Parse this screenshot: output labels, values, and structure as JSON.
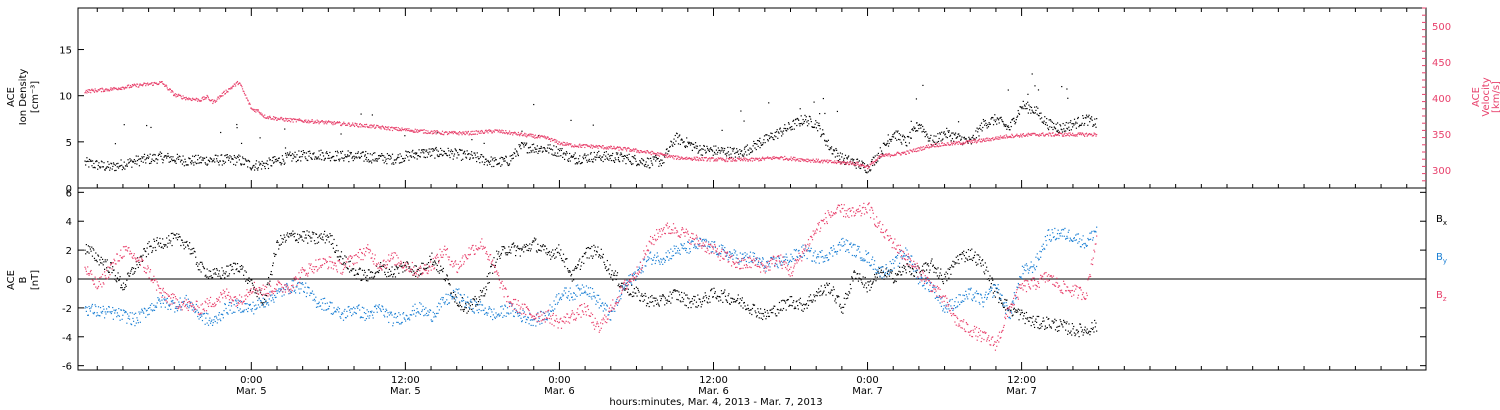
{
  "colors": {
    "black": "#000000",
    "pink": "#e8416c",
    "blue": "#1a7fd4"
  },
  "time_axis": {
    "title": "hours:minutes, Mar.  4, 2013 - Mar. 7, 2013",
    "range_hours": [
      -13.5,
      91.5
    ],
    "ticks": [
      {
        "h": 0,
        "time": "0:00",
        "date": "Mar. 5"
      },
      {
        "h": 12,
        "time": "12:00",
        "date": "Mar. 5"
      },
      {
        "h": 24,
        "time": "0:00",
        "date": "Mar. 6"
      },
      {
        "h": 36,
        "time": "12:00",
        "date": "Mar. 6"
      },
      {
        "h": 48,
        "time": "0:00",
        "date": "Mar. 7"
      },
      {
        "h": 60,
        "time": "12:00",
        "date": "Mar. 7"
      }
    ],
    "minor_step_hours": 2
  },
  "chart_data": [
    {
      "type": "scatter",
      "panel": "top",
      "left_axis": {
        "label_lines": [
          "ACE",
          "Ion Density",
          "[cm⁻³]"
        ],
        "ylim": [
          0,
          19.5
        ],
        "ticks": [
          0,
          5,
          10,
          15
        ]
      },
      "right_axis": {
        "label_lines": [
          "ACE",
          "Velocity",
          "[km/s]"
        ],
        "ylim": [
          275,
          525
        ],
        "ticks": [
          300,
          350,
          400,
          450,
          500
        ]
      },
      "series": [
        {
          "color": "black",
          "axis": "left",
          "x": [
            -13,
            -11,
            -9,
            -7,
            -5,
            -3,
            -1,
            0,
            1,
            3,
            5,
            7,
            9,
            11,
            13,
            15,
            17,
            19,
            20,
            21,
            23,
            24,
            25,
            27,
            29,
            31,
            32,
            33,
            35,
            37,
            38,
            39,
            41,
            43,
            44,
            45,
            46,
            47,
            48,
            49,
            50,
            51,
            52,
            53,
            54,
            55,
            56,
            57,
            58,
            59,
            60,
            61,
            62,
            63,
            64,
            65,
            65.8
          ],
          "y": [
            2.8,
            2.3,
            3.0,
            3.4,
            3.0,
            3.1,
            3.1,
            2.5,
            2.6,
            3.4,
            3.7,
            3.5,
            3.4,
            3.2,
            3.8,
            3.9,
            3.5,
            2.8,
            3.0,
            4.5,
            4.3,
            4.0,
            3.2,
            3.5,
            3.3,
            2.8,
            3.0,
            5.5,
            4.2,
            4.0,
            3.8,
            4.5,
            6.0,
            7.5,
            7.0,
            4.5,
            3.2,
            2.8,
            2.2,
            4.0,
            6.0,
            5.0,
            7.0,
            5.0,
            6.0,
            5.5,
            5.0,
            7.0,
            7.5,
            6.5,
            9.0,
            8.5,
            7.0,
            6.5,
            7.0,
            7.5,
            7.0
          ]
        },
        {
          "color": "pink",
          "axis": "right",
          "x": [
            -13,
            -11,
            -9,
            -8,
            -7,
            -6,
            -5,
            -4,
            -3.5,
            -3,
            -2,
            -1,
            0,
            0.5,
            1,
            2,
            3,
            5,
            7,
            9,
            11,
            13,
            15,
            17,
            19,
            21,
            23,
            24,
            25,
            27,
            29,
            31,
            33,
            35,
            37,
            39,
            41,
            43,
            45,
            47,
            48,
            49,
            51,
            53,
            55,
            57,
            59,
            61,
            63,
            65,
            65.8
          ],
          "y": [
            410,
            413,
            418,
            420,
            422,
            405,
            400,
            398,
            402,
            395,
            410,
            423,
            385,
            383,
            375,
            372,
            370,
            368,
            365,
            362,
            358,
            355,
            352,
            352,
            355,
            350,
            345,
            338,
            335,
            333,
            330,
            325,
            318,
            316,
            315,
            315,
            318,
            315,
            312,
            310,
            305,
            320,
            325,
            335,
            338,
            342,
            348,
            350,
            350,
            350,
            350
          ]
        }
      ]
    },
    {
      "type": "scatter",
      "panel": "bottom",
      "left_axis": {
        "label_lines": [
          "ACE",
          "B",
          "[nT]"
        ],
        "ylim": [
          -6.3,
          6.3
        ],
        "ticks": [
          -6,
          -4,
          -2,
          0,
          2,
          4,
          6
        ]
      },
      "legend": [
        {
          "text": "B",
          "sub": "x",
          "color": "black"
        },
        {
          "text": "B",
          "sub": "y",
          "color": "blue"
        },
        {
          "text": "B",
          "sub": "z",
          "color": "pink"
        }
      ],
      "series": [
        {
          "name": "Bx",
          "color": "black",
          "x": [
            -13,
            -12,
            -11,
            -10,
            -9,
            -8,
            -7,
            -6,
            -5,
            -4,
            -3,
            -2,
            -1,
            0,
            1,
            2,
            3,
            4,
            5,
            6,
            7,
            8,
            9,
            10,
            11,
            12,
            13,
            14,
            15,
            16,
            17,
            18,
            19,
            20,
            21,
            22,
            23,
            24,
            25,
            26,
            27,
            28,
            29,
            30,
            31,
            32,
            33,
            34,
            35,
            36,
            37,
            38,
            39,
            40,
            41,
            42,
            43,
            44,
            45,
            46,
            47,
            48,
            49,
            50,
            51,
            52,
            53,
            54,
            55,
            56,
            57,
            58,
            59,
            60,
            61,
            62,
            63,
            64,
            65,
            65.8
          ],
          "y": [
            2.2,
            1.5,
            0.8,
            -0.5,
            1.0,
            2.2,
            2.6,
            2.8,
            2.5,
            0.8,
            0.3,
            0.5,
            1.0,
            -0.5,
            -1.5,
            2.5,
            3.0,
            3.0,
            2.8,
            3.0,
            1.5,
            0.5,
            0.2,
            0.8,
            0.5,
            1.0,
            0.5,
            1.5,
            0.3,
            -1.5,
            -2.0,
            -1.0,
            1.5,
            2.2,
            2.0,
            2.5,
            1.8,
            2.0,
            0.2,
            1.8,
            2.0,
            0.5,
            -0.5,
            -1.0,
            -1.5,
            -1.5,
            -1.0,
            -1.5,
            -1.5,
            -1.0,
            -1.2,
            -1.5,
            -2.0,
            -2.5,
            -2.0,
            -1.5,
            -1.8,
            -1.0,
            -0.5,
            -2.0,
            0.5,
            -0.5,
            0.5,
            0.2,
            0.8,
            0.5,
            1.0,
            0.0,
            1.5,
            1.8,
            1.0,
            -1.0,
            -2.0,
            -2.5,
            -3.0,
            -3.0,
            -3.2,
            -3.5,
            -3.5,
            -3.2
          ]
        },
        {
          "name": "By",
          "color": "blue",
          "x": [
            -13,
            -12,
            -11,
            -10,
            -9,
            -8,
            -7,
            -6,
            -5,
            -4,
            -3,
            -2,
            -1,
            0,
            1,
            2,
            3,
            4,
            5,
            6,
            7,
            8,
            9,
            10,
            11,
            12,
            13,
            14,
            15,
            16,
            17,
            18,
            19,
            20,
            21,
            22,
            23,
            24,
            25,
            26,
            27,
            28,
            29,
            30,
            31,
            32,
            33,
            34,
            35,
            36,
            37,
            38,
            39,
            40,
            41,
            42,
            43,
            44,
            45,
            46,
            47,
            48,
            49,
            50,
            51,
            52,
            53,
            54,
            55,
            56,
            57,
            58,
            59,
            60,
            61,
            62,
            63,
            64,
            65,
            65.8
          ],
          "y": [
            -2.0,
            -2.2,
            -2.3,
            -2.5,
            -2.8,
            -2.0,
            -1.5,
            -1.8,
            -1.5,
            -2.5,
            -3.0,
            -2.0,
            -1.8,
            -2.0,
            -1.5,
            -1.0,
            -0.5,
            -0.5,
            -1.5,
            -1.8,
            -2.5,
            -2.0,
            -2.5,
            -2.0,
            -2.8,
            -2.5,
            -2.0,
            -2.5,
            -1.5,
            -1.0,
            -1.8,
            -2.0,
            -2.5,
            -2.0,
            -2.5,
            -2.8,
            -2.5,
            -1.0,
            -1.0,
            -0.5,
            -1.5,
            -2.5,
            -0.5,
            0.5,
            1.5,
            1.5,
            2.0,
            2.2,
            2.5,
            2.2,
            1.8,
            1.5,
            1.5,
            1.0,
            1.2,
            1.5,
            2.0,
            1.5,
            1.8,
            2.5,
            2.0,
            1.5,
            0.5,
            1.0,
            2.0,
            0.0,
            -0.5,
            -2.0,
            -1.5,
            -1.0,
            -1.5,
            -0.5,
            -2.5,
            0.5,
            1.0,
            3.0,
            3.2,
            3.0,
            2.5,
            3.5
          ]
        },
        {
          "name": "Bz",
          "color": "pink",
          "x": [
            -13,
            -12,
            -11,
            -10,
            -9,
            -8,
            -7,
            -6,
            -5,
            -4,
            -3,
            -2,
            -1,
            0,
            1,
            2,
            3,
            4,
            5,
            6,
            7,
            8,
            9,
            10,
            11,
            12,
            13,
            14,
            15,
            16,
            17,
            18,
            19,
            20,
            21,
            22,
            23,
            24,
            25,
            26,
            27,
            28,
            29,
            30,
            31,
            32,
            33,
            34,
            35,
            36,
            37,
            38,
            39,
            40,
            41,
            42,
            43,
            44,
            45,
            46,
            47,
            48,
            49,
            50,
            51,
            52,
            53,
            54,
            55,
            56,
            57,
            58,
            59,
            60,
            61,
            62,
            63,
            64,
            65,
            65.8
          ],
          "y": [
            0.8,
            -0.5,
            0.8,
            2.0,
            1.5,
            0.5,
            -1.0,
            -1.5,
            -1.8,
            -2.0,
            -1.5,
            -1.0,
            -1.5,
            -0.5,
            -0.8,
            -0.5,
            -0.5,
            0.5,
            1.0,
            1.2,
            0.8,
            1.5,
            2.0,
            1.0,
            1.5,
            1.0,
            0.5,
            1.0,
            2.0,
            0.8,
            2.0,
            2.5,
            0.5,
            -1.5,
            -2.0,
            -2.5,
            -2.5,
            -3.0,
            -2.5,
            -2.0,
            -3.5,
            -2.0,
            -0.5,
            0.5,
            2.5,
            3.5,
            3.5,
            3.0,
            2.5,
            2.0,
            1.5,
            1.0,
            1.2,
            0.8,
            1.5,
            0.5,
            2.0,
            3.5,
            4.5,
            4.8,
            4.5,
            5.0,
            3.5,
            2.5,
            1.5,
            0.5,
            -0.5,
            -1.5,
            -3.0,
            -3.5,
            -4.0,
            -4.5,
            -2.0,
            -0.5,
            -0.3,
            0.2,
            -0.5,
            -0.8,
            -1.0,
            3.0
          ]
        }
      ]
    }
  ]
}
